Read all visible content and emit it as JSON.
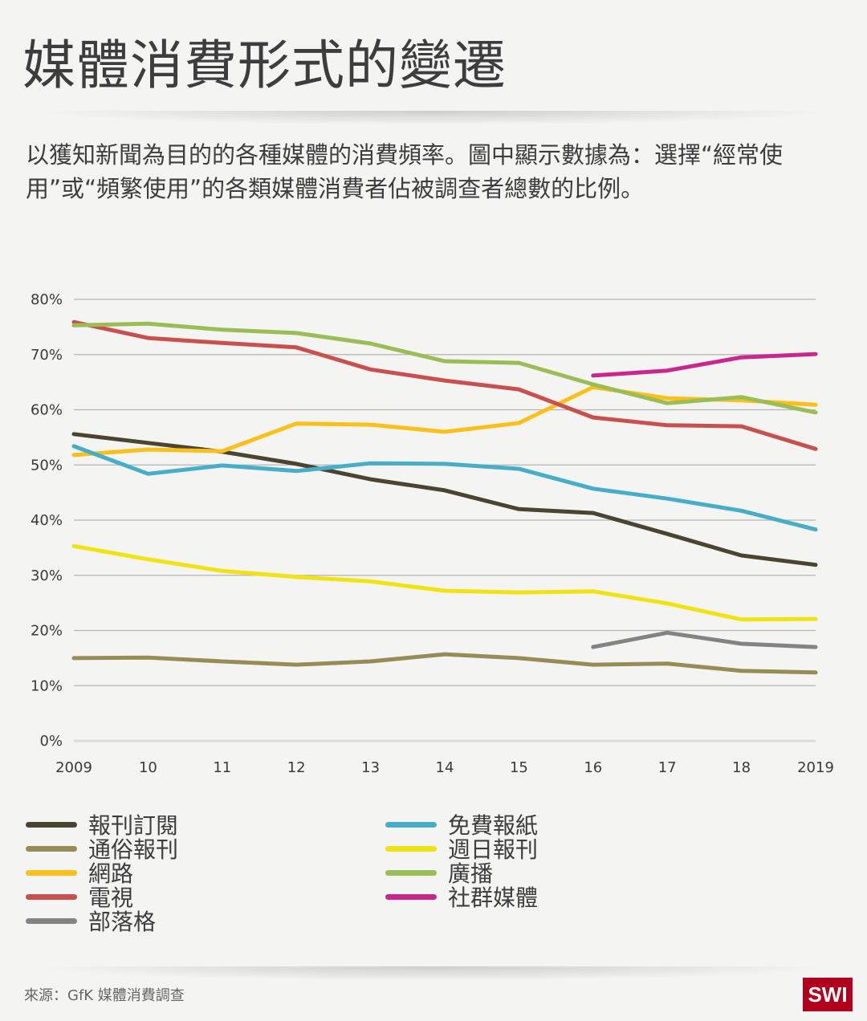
{
  "header": {
    "title": "媒體消費形式的變遷",
    "subtitle": "以獲知新聞為目的的各種媒體的消費頻率。圖中顯示數據為：選擇“經常使用”或“頻繁使用”的各類媒體消費者佔被調查者總數的比例。"
  },
  "footer": {
    "source": "來源：GfK 媒體消費調查",
    "logo": "SWI",
    "logo_color": "#b0001e"
  },
  "chart_data": {
    "type": "line",
    "title": "媒體消費形式的變遷",
    "xlabel": "",
    "ylabel": "",
    "x": [
      2009,
      2010,
      2011,
      2012,
      2013,
      2014,
      2015,
      2016,
      2017,
      2018,
      2019
    ],
    "x_tick_labels": [
      "2009",
      "10",
      "11",
      "12",
      "13",
      "14",
      "15",
      "16",
      "17",
      "18",
      "2019"
    ],
    "y_tick_labels": [
      "0%",
      "10%",
      "20%",
      "30%",
      "40%",
      "50%",
      "60%",
      "70%",
      "80%"
    ],
    "ylim": [
      0,
      80
    ],
    "grid": true,
    "legend_position": "bottom",
    "series": [
      {
        "name": "報刊訂閱",
        "color": "#4a4430",
        "values": [
          55.6,
          54.0,
          52.4,
          50.2,
          47.4,
          45.4,
          42.0,
          41.3,
          37.5,
          33.6,
          31.9
        ]
      },
      {
        "name": "通俗報刊",
        "color": "#968c55",
        "values": [
          15.0,
          15.1,
          14.4,
          13.8,
          14.4,
          15.7,
          15.0,
          13.8,
          14.0,
          12.7,
          12.4
        ]
      },
      {
        "name": "網路",
        "color": "#fcc019",
        "values": [
          51.8,
          52.8,
          52.5,
          57.5,
          57.3,
          56.0,
          57.6,
          64.1,
          62.1,
          61.7,
          60.9
        ]
      },
      {
        "name": "電視",
        "color": "#c8504f",
        "values": [
          75.9,
          73.0,
          72.1,
          71.3,
          67.3,
          65.3,
          63.7,
          58.6,
          57.2,
          57.0,
          52.9
        ]
      },
      {
        "name": "部落格",
        "color": "#838383",
        "values": [
          null,
          null,
          null,
          null,
          null,
          null,
          null,
          17.0,
          19.6,
          17.6,
          17.0
        ]
      },
      {
        "name": "免費報紙",
        "color": "#47aec8",
        "values": [
          53.4,
          48.4,
          49.9,
          48.9,
          50.3,
          50.2,
          49.3,
          45.7,
          43.9,
          41.7,
          38.3
        ]
      },
      {
        "name": "週日報刊",
        "color": "#f1e311",
        "values": [
          35.3,
          32.9,
          30.8,
          29.7,
          28.9,
          27.2,
          26.9,
          27.1,
          24.9,
          22.0,
          22.1
        ]
      },
      {
        "name": "廣播",
        "color": "#9abd55",
        "values": [
          75.3,
          75.6,
          74.5,
          73.9,
          72.0,
          68.8,
          68.5,
          64.6,
          61.2,
          62.3,
          59.5
        ]
      },
      {
        "name": "社群媒體",
        "color": "#c8288c",
        "values": [
          null,
          null,
          null,
          null,
          null,
          null,
          null,
          66.2,
          67.1,
          69.5,
          70.1
        ]
      }
    ]
  }
}
